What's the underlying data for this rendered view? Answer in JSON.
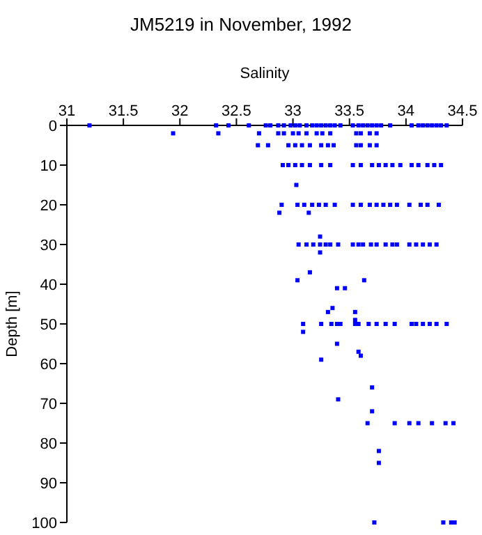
{
  "chart_data": {
    "type": "scatter",
    "title": "JM5219 in November, 1992",
    "xlabel": "Salinity",
    "ylabel": "Depth [m]",
    "xlim": [
      31,
      34.5
    ],
    "xticks": [
      31,
      31.5,
      32,
      32.5,
      33,
      33.5,
      34,
      34.5
    ],
    "ylim": [
      100,
      0
    ],
    "yticks": [
      0,
      10,
      20,
      30,
      40,
      50,
      60,
      70,
      80,
      90,
      100
    ],
    "marker": "square",
    "series": [
      {
        "color": "#0000ff",
        "x": [
          31.2,
          32.32,
          32.43,
          32.61,
          32.76,
          32.8,
          32.87,
          32.92,
          32.98,
          33.02,
          33.06,
          33.12,
          33.17,
          33.21,
          33.25,
          33.29,
          33.33,
          33.37,
          33.42,
          33.53,
          33.58,
          33.62,
          33.66,
          33.7,
          33.74,
          33.78,
          33.86,
          34.05,
          34.11,
          34.15,
          34.19,
          34.23,
          34.27,
          34.31,
          34.36,
          31.94,
          32.34,
          32.7,
          32.87,
          32.92,
          33.0,
          33.05,
          33.12,
          33.21,
          33.26,
          33.33,
          33.56,
          33.6,
          33.68,
          33.74,
          32.69,
          32.78,
          32.96,
          33.02,
          33.08,
          33.15,
          33.25,
          33.31,
          33.36,
          33.56,
          33.6,
          33.68,
          33.74,
          32.91,
          32.96,
          33.02,
          33.08,
          33.15,
          33.25,
          33.33,
          33.53,
          33.6,
          33.7,
          33.76,
          33.82,
          33.88,
          33.95,
          34.05,
          34.11,
          34.19,
          34.25,
          34.31,
          33.03,
          32.9,
          33.04,
          33.1,
          33.17,
          33.23,
          33.29,
          33.37,
          33.53,
          33.6,
          33.68,
          33.74,
          33.8,
          33.86,
          33.92,
          34.03,
          34.13,
          34.19,
          34.29,
          32.88,
          33.14,
          33.24,
          33.05,
          33.12,
          33.18,
          33.24,
          33.29,
          33.33,
          33.4,
          33.53,
          33.58,
          33.62,
          33.69,
          33.74,
          33.82,
          33.88,
          33.92,
          34.03,
          34.09,
          34.15,
          34.21,
          34.27,
          33.24,
          33.15,
          33.04,
          33.63,
          33.39,
          33.46,
          33.35,
          33.31,
          33.55,
          33.55,
          33.09,
          33.25,
          33.34,
          33.39,
          33.42,
          33.55,
          33.58,
          33.67,
          33.74,
          33.82,
          33.9,
          34.05,
          34.09,
          34.15,
          34.21,
          34.27,
          34.36,
          33.09,
          33.39,
          33.58,
          33.6,
          33.25,
          33.7,
          33.4,
          33.7,
          33.66,
          33.9,
          34.03,
          34.11,
          34.23,
          34.35,
          34.42,
          33.76,
          33.76,
          33.72,
          34.33,
          34.4,
          34.43
        ],
        "values": [
          0,
          0,
          0,
          0,
          0,
          0,
          0,
          0,
          0,
          0,
          0,
          0,
          0,
          0,
          0,
          0,
          0,
          0,
          0,
          0,
          0,
          0,
          0,
          0,
          0,
          0,
          0,
          0,
          0,
          0,
          0,
          0,
          0,
          0,
          0,
          2,
          2,
          2,
          2,
          2,
          2,
          2,
          2,
          2,
          2,
          2,
          2,
          2,
          2,
          2,
          5,
          5,
          5,
          5,
          5,
          5,
          5,
          5,
          5,
          5,
          5,
          5,
          5,
          10,
          10,
          10,
          10,
          10,
          10,
          10,
          10,
          10,
          10,
          10,
          10,
          10,
          10,
          10,
          10,
          10,
          10,
          10,
          15,
          20,
          20,
          20,
          20,
          20,
          20,
          20,
          20,
          20,
          20,
          20,
          20,
          20,
          20,
          20,
          20,
          20,
          20,
          22,
          22,
          28,
          30,
          30,
          30,
          30,
          30,
          30,
          30,
          30,
          30,
          30,
          30,
          30,
          30,
          30,
          30,
          30,
          30,
          30,
          30,
          30,
          32,
          37,
          39,
          39,
          41,
          41,
          46,
          47,
          47,
          49,
          50,
          50,
          50,
          50,
          50,
          50,
          50,
          50,
          50,
          50,
          50,
          50,
          50,
          50,
          50,
          50,
          50,
          52,
          55,
          57,
          58,
          59,
          66,
          69,
          72,
          75,
          75,
          75,
          75,
          75,
          75,
          75,
          82,
          85,
          100,
          100,
          100,
          100
        ]
      }
    ]
  }
}
